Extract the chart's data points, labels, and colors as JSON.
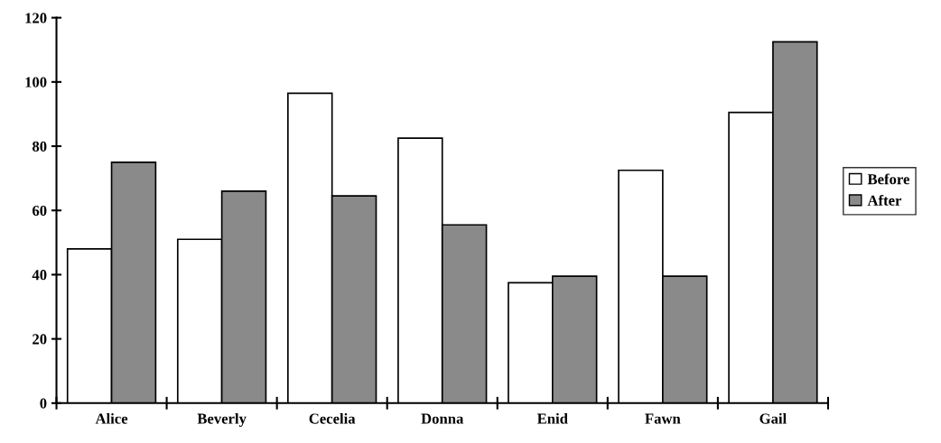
{
  "chart_data": {
    "type": "bar",
    "categories": [
      "Alice",
      "Beverly",
      "Cecelia",
      "Donna",
      "Enid",
      "Fawn",
      "Gail"
    ],
    "series": [
      {
        "name": "Before",
        "color": "#ffffff",
        "values": [
          48,
          51,
          96.5,
          82.5,
          37.5,
          72.5,
          90.5
        ]
      },
      {
        "name": "After",
        "color": "#8a8a8a",
        "values": [
          75,
          66,
          64.5,
          55.5,
          39.5,
          39.5,
          112.5
        ]
      }
    ],
    "ylim": [
      0,
      120
    ],
    "yticks": [
      0,
      20,
      40,
      60,
      80,
      100,
      120
    ],
    "grid": false,
    "legend": "right"
  }
}
